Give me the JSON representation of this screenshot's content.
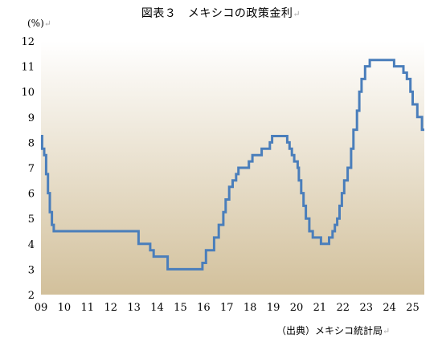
{
  "page": {
    "title": "図表３　メキシコの政策金利",
    "source": "（出典）メキシコ統計局",
    "return_mark": "↵"
  },
  "chart_data": {
    "type": "line",
    "title": "図表３　メキシコの政策金利",
    "ylabel": "(%)",
    "xlabel": "",
    "ylim": [
      2,
      12
    ],
    "xlim": [
      2009.0,
      2025.5
    ],
    "y_ticks": [
      2,
      3,
      4,
      5,
      6,
      7,
      8,
      9,
      10,
      11,
      12
    ],
    "x_ticks": [
      {
        "label": "09",
        "x": 2009.0
      },
      {
        "label": "10",
        "x": 2010.0
      },
      {
        "label": "11",
        "x": 2011.0
      },
      {
        "label": "12",
        "x": 2012.0
      },
      {
        "label": "13",
        "x": 2013.0
      },
      {
        "label": "14",
        "x": 2014.0
      },
      {
        "label": "15",
        "x": 2015.0
      },
      {
        "label": "16",
        "x": 2016.0
      },
      {
        "label": "17",
        "x": 2017.0
      },
      {
        "label": "18",
        "x": 2018.0
      },
      {
        "label": "19",
        "x": 2019.0
      },
      {
        "label": "20",
        "x": 2020.0
      },
      {
        "label": "21",
        "x": 2021.0
      },
      {
        "label": "22",
        "x": 2022.0
      },
      {
        "label": "23",
        "x": 2023.0
      },
      {
        "label": "24",
        "x": 2024.0
      },
      {
        "label": "25",
        "x": 2025.0
      }
    ],
    "grid": false,
    "colors": {
      "line": "#4a7ebb",
      "bg_top": "#ffffff",
      "bg_bottom": "#d2c09b"
    },
    "series": [
      {
        "step": true,
        "points": [
          [
            2009.0,
            8.25
          ],
          [
            2009.05,
            7.75
          ],
          [
            2009.14,
            7.5
          ],
          [
            2009.22,
            6.75
          ],
          [
            2009.3,
            6.0
          ],
          [
            2009.38,
            5.25
          ],
          [
            2009.47,
            4.75
          ],
          [
            2009.55,
            4.5
          ],
          [
            2013.2,
            4.0
          ],
          [
            2013.7,
            3.75
          ],
          [
            2013.85,
            3.5
          ],
          [
            2014.45,
            3.0
          ],
          [
            2015.95,
            3.25
          ],
          [
            2016.1,
            3.75
          ],
          [
            2016.45,
            4.25
          ],
          [
            2016.65,
            4.75
          ],
          [
            2016.85,
            5.25
          ],
          [
            2016.95,
            5.75
          ],
          [
            2017.1,
            6.25
          ],
          [
            2017.25,
            6.5
          ],
          [
            2017.4,
            6.75
          ],
          [
            2017.5,
            7.0
          ],
          [
            2017.95,
            7.25
          ],
          [
            2018.1,
            7.5
          ],
          [
            2018.5,
            7.75
          ],
          [
            2018.85,
            8.0
          ],
          [
            2018.95,
            8.25
          ],
          [
            2019.6,
            8.0
          ],
          [
            2019.7,
            7.75
          ],
          [
            2019.8,
            7.5
          ],
          [
            2019.9,
            7.25
          ],
          [
            2020.05,
            7.0
          ],
          [
            2020.1,
            6.5
          ],
          [
            2020.2,
            6.0
          ],
          [
            2020.3,
            5.5
          ],
          [
            2020.4,
            5.0
          ],
          [
            2020.55,
            4.5
          ],
          [
            2020.7,
            4.25
          ],
          [
            2021.05,
            4.0
          ],
          [
            2021.4,
            4.25
          ],
          [
            2021.55,
            4.5
          ],
          [
            2021.65,
            4.75
          ],
          [
            2021.75,
            5.0
          ],
          [
            2021.85,
            5.5
          ],
          [
            2021.95,
            6.0
          ],
          [
            2022.05,
            6.5
          ],
          [
            2022.2,
            7.0
          ],
          [
            2022.35,
            7.75
          ],
          [
            2022.45,
            8.5
          ],
          [
            2022.6,
            9.25
          ],
          [
            2022.7,
            10.0
          ],
          [
            2022.8,
            10.5
          ],
          [
            2022.95,
            11.0
          ],
          [
            2023.15,
            11.25
          ],
          [
            2024.2,
            11.0
          ],
          [
            2024.6,
            10.75
          ],
          [
            2024.75,
            10.5
          ],
          [
            2024.9,
            10.0
          ],
          [
            2025.0,
            9.5
          ],
          [
            2025.2,
            9.0
          ],
          [
            2025.4,
            8.5
          ],
          [
            2025.5,
            8.5
          ]
        ]
      }
    ]
  }
}
